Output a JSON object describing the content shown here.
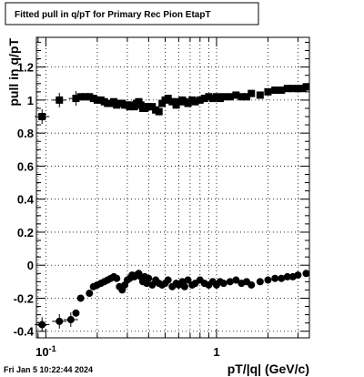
{
  "timestamp": "Fri Jan  5 10:22:44 2024",
  "chart_data": {
    "type": "scatter",
    "title": "Fitted pull in q/pT for Primary Rec Pion EtapT",
    "xlabel": "pT/|q| (GeV/c)",
    "ylabel": "pull in q/pT",
    "xscale": "log",
    "xlim": [
      0.088,
      3.5
    ],
    "ylim": [
      -0.44,
      1.38
    ],
    "grid": true,
    "x_ticks": [
      {
        "value": 0.1,
        "label": "10",
        "sup": "-1"
      },
      {
        "value": 1,
        "label": "1"
      }
    ],
    "y_ticks": [
      {
        "value": -0.4,
        "label": "-0.4"
      },
      {
        "value": -0.2,
        "label": "-0.2"
      },
      {
        "value": 0,
        "label": "0"
      },
      {
        "value": 0.2,
        "label": "0.2"
      },
      {
        "value": 0.4,
        "label": "0.4"
      },
      {
        "value": 0.6,
        "label": "0.6"
      },
      {
        "value": 0.8,
        "label": "0.8"
      },
      {
        "value": 1,
        "label": "1"
      },
      {
        "value": 1.2,
        "label": "1.2"
      }
    ],
    "series": [
      {
        "marker": "square",
        "points": [
          [
            0.095,
            0.9
          ],
          [
            0.12,
            1.0
          ],
          [
            0.15,
            1.01
          ],
          [
            0.16,
            1.02
          ],
          [
            0.17,
            1.02
          ],
          [
            0.18,
            1.02
          ],
          [
            0.19,
            1.01
          ],
          [
            0.2,
            1.0
          ],
          [
            0.21,
            1.0
          ],
          [
            0.22,
            0.99
          ],
          [
            0.23,
            0.98
          ],
          [
            0.24,
            0.98
          ],
          [
            0.25,
            0.99
          ],
          [
            0.26,
            0.97
          ],
          [
            0.27,
            0.98
          ],
          [
            0.28,
            0.98
          ],
          [
            0.29,
            0.97
          ],
          [
            0.3,
            0.97
          ],
          [
            0.31,
            0.96
          ],
          [
            0.32,
            0.97
          ],
          [
            0.33,
            0.96
          ],
          [
            0.34,
            0.98
          ],
          [
            0.35,
            0.99
          ],
          [
            0.36,
            0.97
          ],
          [
            0.37,
            0.95
          ],
          [
            0.38,
            0.95
          ],
          [
            0.39,
            0.96
          ],
          [
            0.4,
            0.96
          ],
          [
            0.42,
            0.96
          ],
          [
            0.44,
            0.94
          ],
          [
            0.46,
            0.93
          ],
          [
            0.48,
            0.98
          ],
          [
            0.5,
            1.0
          ],
          [
            0.52,
            1.01
          ],
          [
            0.55,
            0.99
          ],
          [
            0.58,
            0.97
          ],
          [
            0.6,
            0.99
          ],
          [
            0.63,
            1.0
          ],
          [
            0.65,
            0.99
          ],
          [
            0.68,
            0.98
          ],
          [
            0.72,
            1.0
          ],
          [
            0.75,
            0.99
          ],
          [
            0.8,
            1.0
          ],
          [
            0.85,
            1.01
          ],
          [
            0.9,
            1.02
          ],
          [
            0.95,
            1.01
          ],
          [
            1.0,
            1.02
          ],
          [
            1.05,
            1.01
          ],
          [
            1.1,
            1.02
          ],
          [
            1.2,
            1.02
          ],
          [
            1.3,
            1.03
          ],
          [
            1.4,
            1.02
          ],
          [
            1.5,
            1.02
          ],
          [
            1.6,
            1.04
          ],
          [
            1.8,
            1.03
          ],
          [
            2.0,
            1.05
          ],
          [
            2.2,
            1.06
          ],
          [
            2.4,
            1.06
          ],
          [
            2.6,
            1.07
          ],
          [
            2.8,
            1.07
          ],
          [
            3.0,
            1.07
          ],
          [
            3.2,
            1.07
          ],
          [
            3.35,
            1.08
          ]
        ]
      },
      {
        "marker": "circle",
        "points": [
          [
            0.095,
            -0.36
          ],
          [
            0.12,
            -0.34
          ],
          [
            0.14,
            -0.33
          ],
          [
            0.15,
            -0.29
          ],
          [
            0.16,
            -0.2
          ],
          [
            0.18,
            -0.17
          ],
          [
            0.19,
            -0.13
          ],
          [
            0.2,
            -0.12
          ],
          [
            0.21,
            -0.11
          ],
          [
            0.22,
            -0.1
          ],
          [
            0.23,
            -0.09
          ],
          [
            0.24,
            -0.08
          ],
          [
            0.25,
            -0.07
          ],
          [
            0.26,
            -0.08
          ],
          [
            0.27,
            -0.13
          ],
          [
            0.28,
            -0.15
          ],
          [
            0.29,
            -0.12
          ],
          [
            0.3,
            -0.09
          ],
          [
            0.31,
            -0.08
          ],
          [
            0.32,
            -0.06
          ],
          [
            0.33,
            -0.07
          ],
          [
            0.34,
            -0.06
          ],
          [
            0.35,
            -0.05
          ],
          [
            0.36,
            -0.07
          ],
          [
            0.37,
            -0.1
          ],
          [
            0.38,
            -0.07
          ],
          [
            0.39,
            -0.11
          ],
          [
            0.4,
            -0.08
          ],
          [
            0.42,
            -0.12
          ],
          [
            0.44,
            -0.09
          ],
          [
            0.46,
            -0.11
          ],
          [
            0.48,
            -0.12
          ],
          [
            0.5,
            -0.11
          ],
          [
            0.52,
            -0.09
          ],
          [
            0.55,
            -0.13
          ],
          [
            0.58,
            -0.11
          ],
          [
            0.6,
            -0.12
          ],
          [
            0.63,
            -0.1
          ],
          [
            0.65,
            -0.13
          ],
          [
            0.68,
            -0.09
          ],
          [
            0.72,
            -0.12
          ],
          [
            0.75,
            -0.11
          ],
          [
            0.8,
            -0.09
          ],
          [
            0.85,
            -0.11
          ],
          [
            0.9,
            -0.12
          ],
          [
            0.95,
            -0.1
          ],
          [
            1.0,
            -0.12
          ],
          [
            1.05,
            -0.1
          ],
          [
            1.1,
            -0.11
          ],
          [
            1.2,
            -0.1
          ],
          [
            1.3,
            -0.09
          ],
          [
            1.4,
            -0.11
          ],
          [
            1.5,
            -0.1
          ],
          [
            1.6,
            -0.12
          ],
          [
            1.8,
            -0.1
          ],
          [
            2.0,
            -0.09
          ],
          [
            2.2,
            -0.08
          ],
          [
            2.4,
            -0.08
          ],
          [
            2.6,
            -0.07
          ],
          [
            2.8,
            -0.07
          ],
          [
            3.0,
            -0.06
          ],
          [
            3.35,
            -0.05
          ]
        ]
      }
    ]
  }
}
